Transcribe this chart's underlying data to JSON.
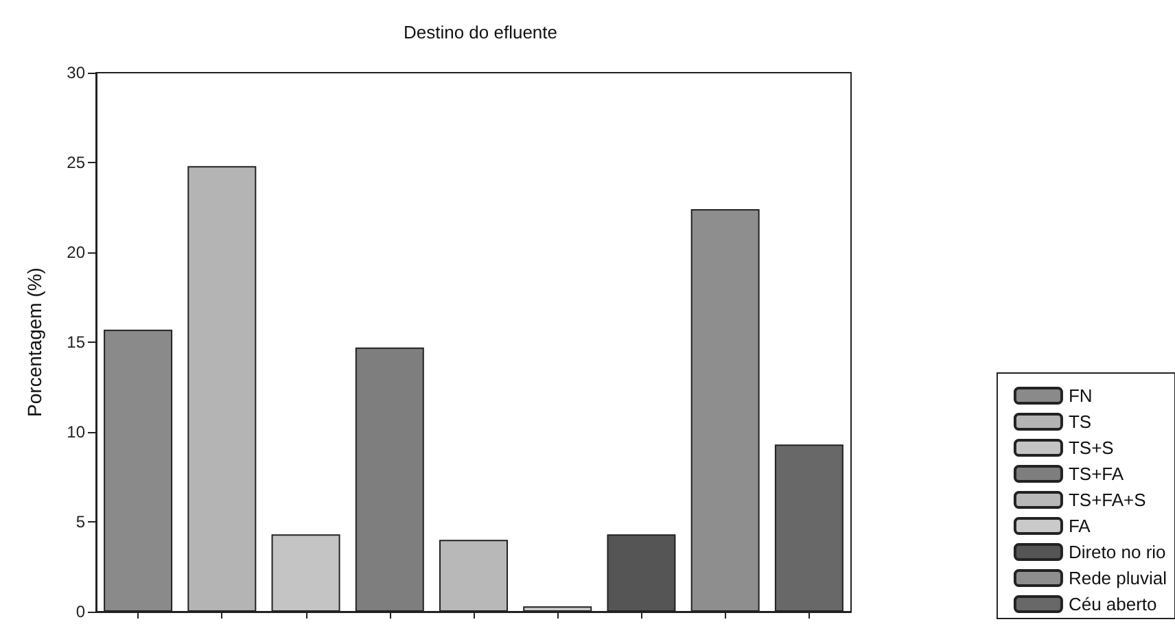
{
  "chart_data": {
    "type": "bar",
    "title": "Destino do efluente",
    "ylabel": "Porcentagem (%)",
    "categories": [
      null,
      null,
      null,
      null,
      null,
      null,
      null,
      null,
      null
    ],
    "series": [
      {
        "name": "FN",
        "color": "#8a8a8a",
        "values": [
          15.7,
          null,
          null,
          null,
          null,
          null,
          null,
          null,
          null
        ]
      },
      {
        "name": "TS",
        "color": "#b4b4b4",
        "values": [
          null,
          24.8,
          null,
          null,
          null,
          null,
          null,
          null,
          null
        ]
      },
      {
        "name": "TS+S",
        "color": "#c4c4c4",
        "values": [
          null,
          null,
          4.3,
          null,
          null,
          null,
          null,
          null,
          null
        ]
      },
      {
        "name": "TS+FA",
        "color": "#7e7e7e",
        "values": [
          null,
          null,
          null,
          14.7,
          null,
          null,
          null,
          null,
          null
        ]
      },
      {
        "name": "TS+FA+S",
        "color": "#b8b8b8",
        "values": [
          null,
          null,
          null,
          null,
          4.0,
          null,
          null,
          null,
          null
        ]
      },
      {
        "name": "FA",
        "color": "#cacaca",
        "values": [
          null,
          null,
          null,
          null,
          null,
          0.3,
          null,
          null,
          null
        ]
      },
      {
        "name": "Direto no rio",
        "color": "#555555",
        "values": [
          null,
          null,
          null,
          null,
          null,
          null,
          4.3,
          null,
          null
        ]
      },
      {
        "name": "Rede pluvial",
        "color": "#8e8e8e",
        "values": [
          null,
          null,
          null,
          null,
          null,
          null,
          null,
          22.4,
          null
        ]
      },
      {
        "name": "Céu aberto",
        "color": "#686868",
        "values": [
          null,
          null,
          null,
          null,
          null,
          null,
          null,
          null,
          9.3
        ]
      }
    ],
    "ylim": [
      0,
      30
    ],
    "yticks": [
      0,
      5,
      10,
      15,
      20,
      25,
      30
    ],
    "tick_labels": "y",
    "legend": "bottom right"
  }
}
